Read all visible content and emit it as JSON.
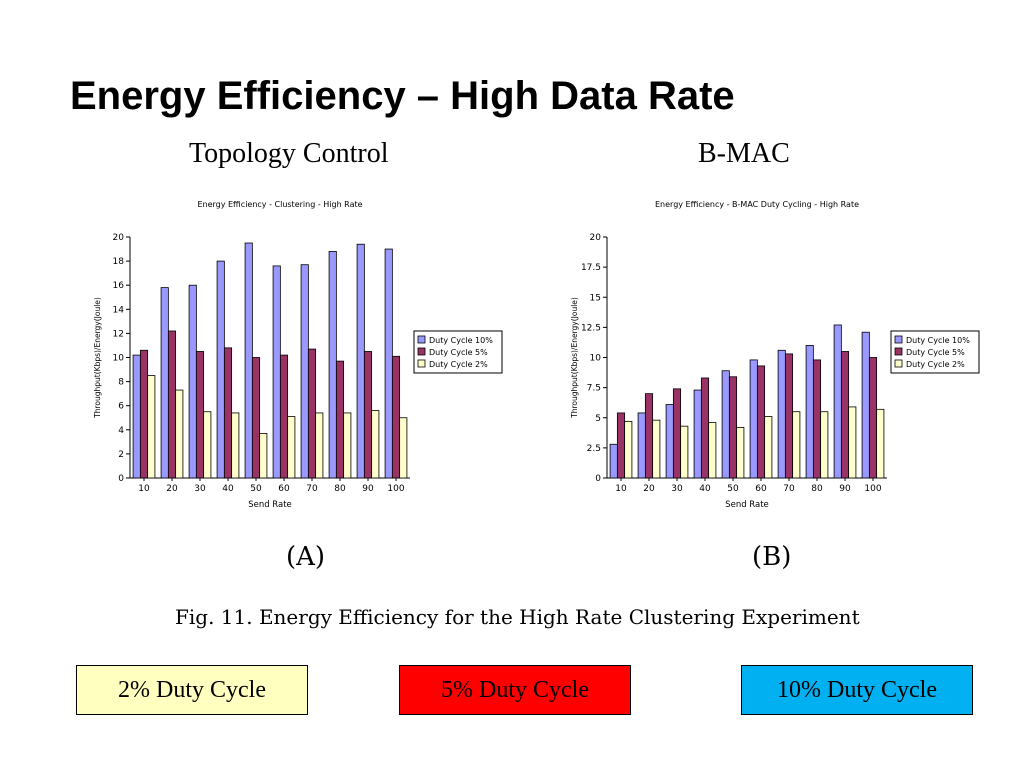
{
  "slide": {
    "title": "Energy Efficiency – High Data Rate",
    "subtitle_left": "Topology Control",
    "subtitle_right": "B-MAC",
    "label_a": "(A)",
    "label_b": "(B)",
    "caption": "Fig. 11. Energy Efficiency for the High Rate Clustering Experiment"
  },
  "legend_boxes": [
    {
      "label": "2% Duty Cycle",
      "color": "#ffffc0"
    },
    {
      "label": "5% Duty Cycle",
      "color": "#ff0000"
    },
    {
      "label": "10% Duty Cycle",
      "color": "#00b0f0"
    }
  ],
  "chart_data": [
    {
      "type": "bar",
      "title": "Energy Efficiency - Clustering - High Rate",
      "xlabel": "Send Rate",
      "ylabel": "Throughput(Kbps)/Energy(Joule)",
      "ylim": [
        0,
        20
      ],
      "yticks": [
        "0",
        "2",
        "4",
        "6",
        "8",
        "10",
        "12",
        "14",
        "16",
        "18",
        "20"
      ],
      "categories": [
        "10",
        "20",
        "30",
        "40",
        "50",
        "60",
        "70",
        "80",
        "90",
        "100"
      ],
      "legend_position": "right",
      "series": [
        {
          "name": "Duty Cycle 10%",
          "color": "#9999ff",
          "values": [
            10.2,
            15.8,
            16.0,
            18.0,
            19.5,
            17.6,
            17.7,
            18.8,
            19.4,
            19.0
          ]
        },
        {
          "name": "Duty Cycle 5%",
          "color": "#993366",
          "values": [
            10.6,
            12.2,
            10.5,
            10.8,
            10.0,
            10.2,
            10.7,
            9.7,
            10.5,
            10.1
          ]
        },
        {
          "name": "Duty Cycle 2%",
          "color": "#ffffcc",
          "values": [
            8.5,
            7.3,
            5.5,
            5.4,
            3.7,
            5.1,
            5.4,
            5.4,
            5.6,
            5.0
          ]
        }
      ]
    },
    {
      "type": "bar",
      "title": "Energy Efficiency - B-MAC Duty Cycling - High Rate",
      "xlabel": "Send Rate",
      "ylabel": "Throughput(Kbps)/Energy(Joule)",
      "ylim": [
        0,
        20
      ],
      "yticks": [
        "0",
        "2.5",
        "5",
        "7.5",
        "10",
        "12.5",
        "15",
        "17.5",
        "20"
      ],
      "categories": [
        "10",
        "20",
        "30",
        "40",
        "50",
        "60",
        "70",
        "80",
        "90",
        "100"
      ],
      "legend_position": "right",
      "series": [
        {
          "name": "Duty Cycle 10%",
          "color": "#9999ff",
          "values": [
            2.8,
            5.4,
            6.1,
            7.3,
            8.9,
            9.8,
            10.6,
            11.0,
            12.7,
            12.1
          ]
        },
        {
          "name": "Duty Cycle 5%",
          "color": "#993366",
          "values": [
            5.4,
            7.0,
            7.4,
            8.3,
            8.4,
            9.3,
            10.3,
            9.8,
            10.5,
            10.0
          ]
        },
        {
          "name": "Duty Cycle 2%",
          "color": "#ffffcc",
          "values": [
            4.7,
            4.8,
            4.3,
            4.6,
            4.2,
            5.1,
            5.5,
            5.5,
            5.9,
            5.7
          ]
        }
      ]
    }
  ]
}
